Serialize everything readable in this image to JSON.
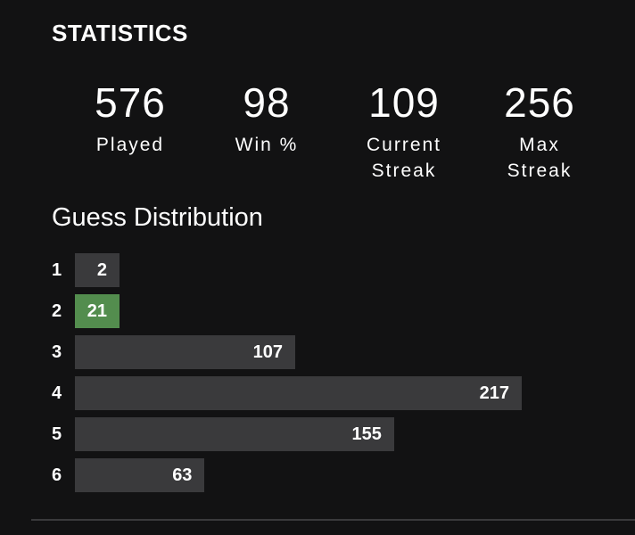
{
  "header": {
    "title": "STATISTICS"
  },
  "stats": [
    {
      "value": 576,
      "label": "Played"
    },
    {
      "value": 98,
      "label": "Win %"
    },
    {
      "value": 109,
      "label": "Current Streak"
    },
    {
      "value": 256,
      "label": "Max Streak"
    }
  ],
  "chart_data": {
    "type": "bar",
    "orientation": "horizontal",
    "title": "Guess Distribution",
    "categories": [
      "1",
      "2",
      "3",
      "4",
      "5",
      "6"
    ],
    "values": [
      2,
      21,
      107,
      217,
      155,
      63
    ],
    "color": "#3a3a3c",
    "highlight_color": "#538d4e",
    "highlight_category": "2"
  }
}
